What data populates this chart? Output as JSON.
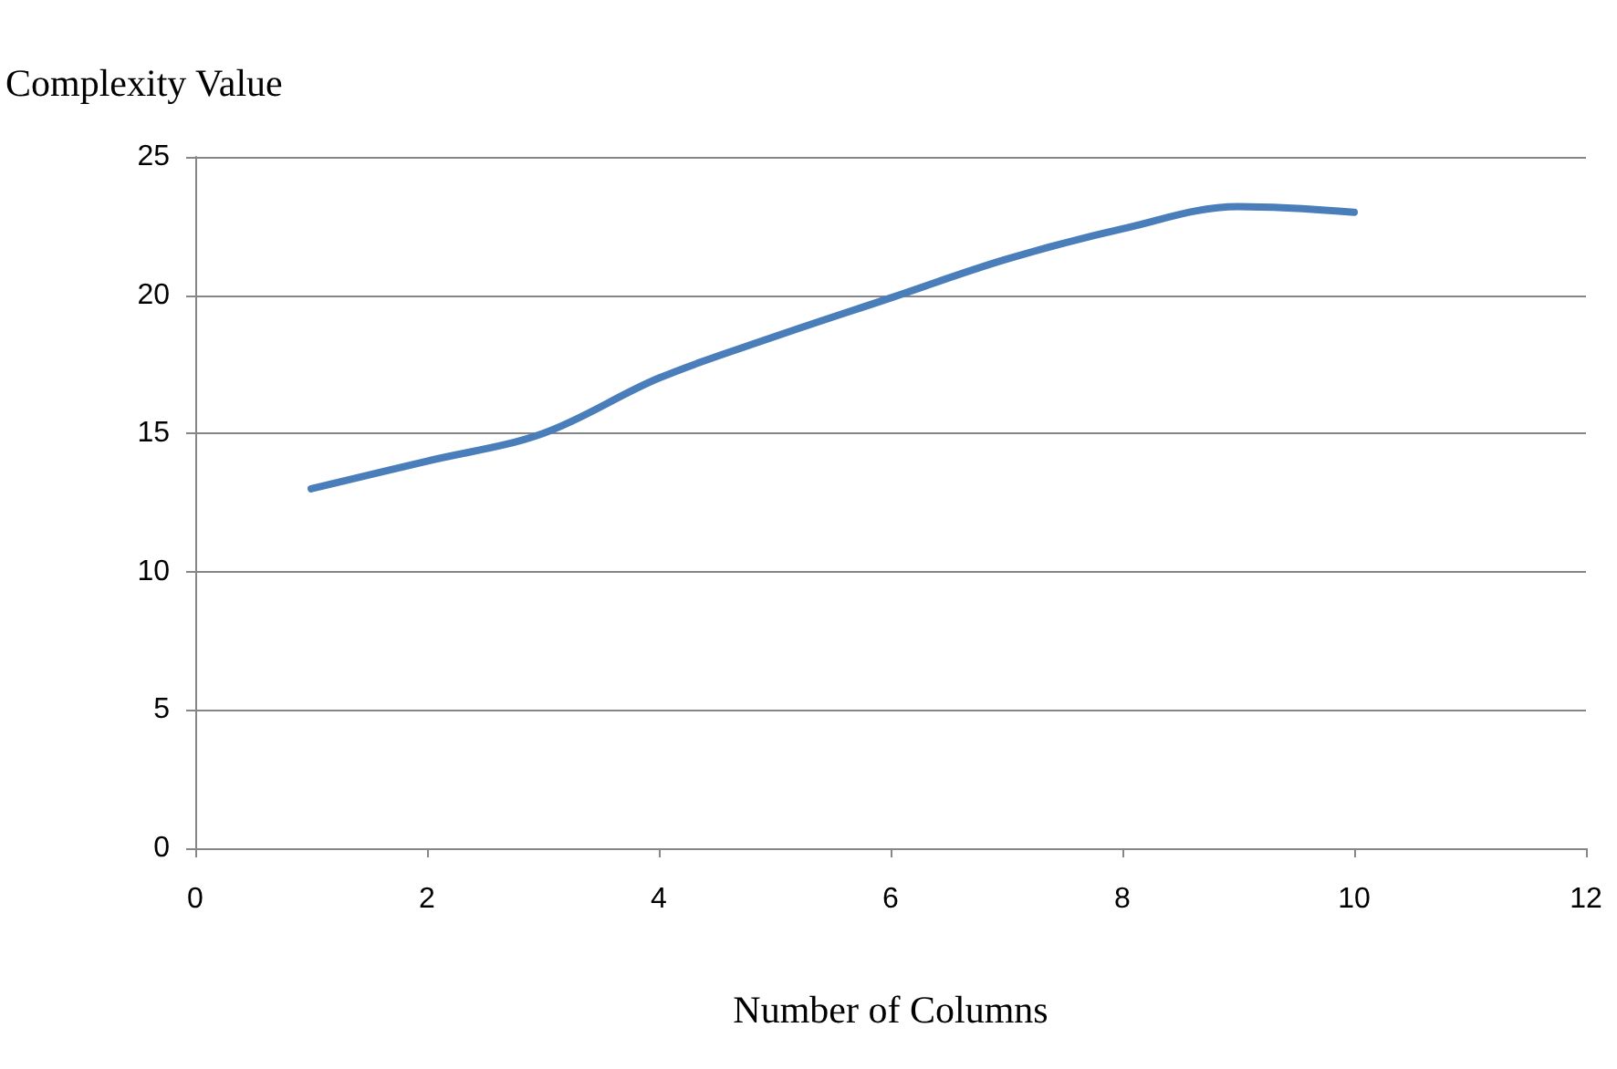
{
  "chart_data": {
    "type": "line",
    "xlabel": "Number of Columns",
    "ylabel": "Complexity Value",
    "x": [
      1,
      2,
      3,
      4,
      5,
      6,
      7,
      8,
      9,
      10
    ],
    "series": [
      {
        "color": "#4a7ebb",
        "values": [
          13.0,
          14.0,
          15.0,
          17.0,
          18.5,
          19.9,
          21.3,
          22.4,
          23.2,
          23.0
        ]
      }
    ],
    "xlim": [
      0,
      12
    ],
    "xticks": [
      0,
      2,
      4,
      6,
      8,
      10,
      12
    ],
    "ylim": [
      0,
      25
    ],
    "yticks": [
      0,
      5,
      10,
      15,
      20,
      25
    ],
    "grid": "y",
    "marker": "none",
    "line_style": "solid"
  }
}
